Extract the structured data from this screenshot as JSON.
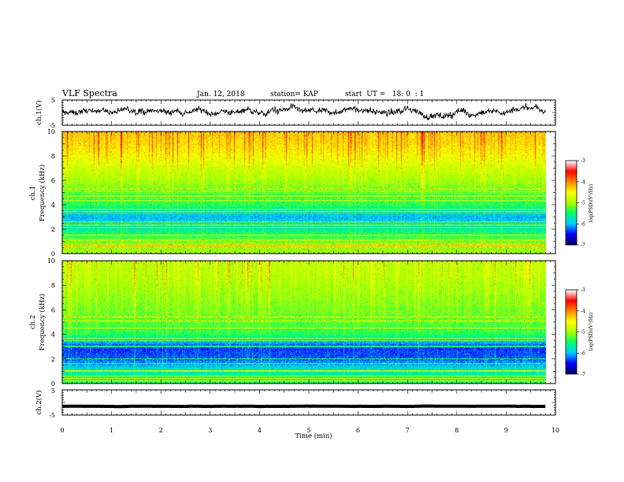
{
  "header": {
    "title": "VLF Spectra",
    "date": "Jan. 12, 2018",
    "station": "station= KAP",
    "start": "start  UT =   18: 0  : 1"
  },
  "chart_data": [
    {
      "type": "line",
      "id": "ch1-waveform",
      "ylabel": "ch.1(V)",
      "xlim": [
        0,
        10
      ],
      "ylim": [
        -5,
        5
      ],
      "yticks": [
        "5",
        "-5"
      ],
      "x_end": 9.8,
      "trace_center": 0,
      "trace_amplitude": 2.8
    },
    {
      "type": "heatmap",
      "id": "ch1-spectrogram",
      "ylabel": "ch.1 Frequency (kHz)",
      "ylabel_lines": [
        "ch.1",
        "Frequency (kHz)"
      ],
      "xlim": [
        0,
        10
      ],
      "ylim": [
        0,
        10
      ],
      "yticks": [
        "0",
        "2",
        "4",
        "6",
        "8",
        "10"
      ],
      "x_end": 9.8,
      "profile_khz": [
        0,
        1,
        2,
        3,
        4,
        5,
        6,
        7,
        8,
        9,
        10
      ],
      "profile_log_psd": [
        -4.7,
        -4.9,
        -5.5,
        -5.9,
        -5.2,
        -5.0,
        -4.7,
        -4.5,
        -4.2,
        -4.0,
        -3.9
      ],
      "lines_khz": [
        0.3,
        0.5,
        0.7,
        1.1,
        1.5,
        2.1,
        2.3,
        2.6,
        3.4,
        3.6,
        4.3,
        4.7,
        5.1,
        5.3
      ],
      "colorbar": {
        "label": "log(PSD)(V²/Hz)",
        "min": -7,
        "max": -3,
        "ticks": [
          "-3",
          "-4",
          "-5",
          "-6",
          "-7"
        ]
      }
    },
    {
      "type": "heatmap",
      "id": "ch2-spectrogram",
      "ylabel": "ch.2 Frequency (kHz)",
      "ylabel_lines": [
        "ch.2",
        "Frequency (kHz)"
      ],
      "xlim": [
        0,
        10
      ],
      "ylim": [
        0,
        10
      ],
      "yticks": [
        "0",
        "2",
        "4",
        "6",
        "8",
        "10"
      ],
      "x_end": 9.8,
      "profile_khz": [
        0,
        1,
        2,
        3,
        4,
        5,
        6,
        7,
        8,
        9,
        10
      ],
      "profile_log_psd": [
        -5.2,
        -5.6,
        -6.2,
        -6.3,
        -5.2,
        -5.0,
        -4.9,
        -4.8,
        -4.7,
        -4.6,
        -4.6
      ],
      "lines_khz": [
        0.2,
        0.4,
        0.6,
        1.0,
        1.6,
        2.0,
        3.0,
        3.5,
        3.7,
        4.5,
        5.1,
        5.4
      ],
      "colorbar": {
        "label": "log(PSD)(V²/Hz)",
        "min": -7,
        "max": -3,
        "ticks": [
          "-3",
          "-4",
          "-5",
          "-6",
          "-7"
        ]
      }
    },
    {
      "type": "line",
      "id": "ch2-waveform",
      "ylabel": "ch.2(V)",
      "xlim": [
        0,
        10
      ],
      "ylim": [
        -5,
        5
      ],
      "yticks": [
        "5",
        "-5"
      ],
      "x_end": 9.8,
      "trace_center": -1.5,
      "trace_amplitude": 0.15,
      "xlabel": "Time (min)",
      "xticks": [
        "0",
        "1",
        "2",
        "3",
        "4",
        "5",
        "6",
        "7",
        "8",
        "9",
        "10"
      ]
    }
  ],
  "colors": {
    "trace": "#000000",
    "colormap": [
      "#000066",
      "#0000ff",
      "#00ccff",
      "#00ff66",
      "#aaff00",
      "#ffff00",
      "#ff8800",
      "#ff0000",
      "#ffffff"
    ]
  }
}
